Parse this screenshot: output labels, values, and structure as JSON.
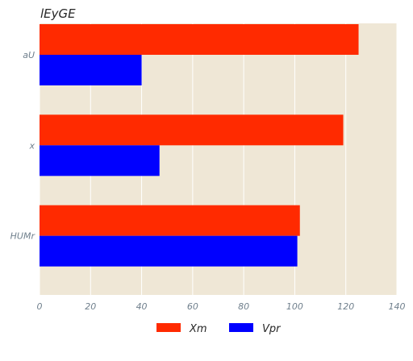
{
  "chart_data": {
    "type": "bar",
    "orientation": "horizontal",
    "title": "lEyGE",
    "xlabel": "",
    "ylabel": "",
    "categories": [
      "aU",
      "x",
      "HUMr"
    ],
    "series": [
      {
        "name": "Xm",
        "color": "#ff2a00",
        "values": [
          125,
          119,
          102
        ]
      },
      {
        "name": "Vpr",
        "color": "#0000ff",
        "values": [
          40,
          47,
          101
        ]
      }
    ],
    "xlim": [
      0,
      140
    ],
    "xticks": [
      0,
      20,
      40,
      60,
      80,
      100,
      120,
      140
    ],
    "grid": true,
    "legend_position": "bottom-center",
    "background_color": "#efe7d6",
    "grid_color": "#ffffff"
  }
}
